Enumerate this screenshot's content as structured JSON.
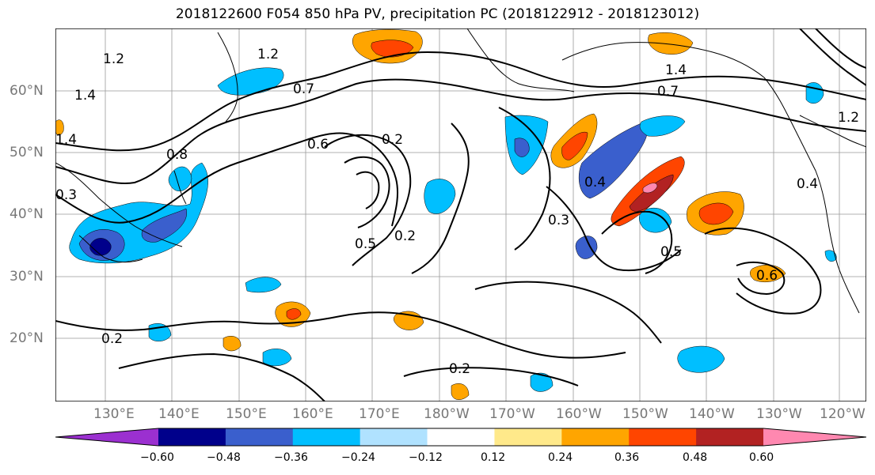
{
  "title": "2018122600 F054 850 hPa PV, precipitation PC (2018122912 - 2018123012)",
  "lat_labels": [
    "60°N",
    "50°N",
    "40°N",
    "30°N",
    "20°N"
  ],
  "lon_labels": [
    "130°E",
    "140°E",
    "150°E",
    "160°E",
    "170°E",
    "180°W",
    "170°W",
    "160°W",
    "150°W",
    "140°W",
    "130°W",
    "120°W"
  ],
  "contour_labels": [
    "1.2",
    "1.2",
    "1.4",
    "1.4",
    "1.4",
    "0.7",
    "0.8",
    "0.2",
    "0.2",
    "0.2",
    "0.4",
    "0.3",
    "0.5",
    "0.6",
    "0.3",
    "0.2",
    "0.4",
    "0.5",
    "0.6",
    "0.7",
    "1.2"
  ],
  "colorbar": {
    "ticks": [
      "−0.60",
      "−0.48",
      "−0.36",
      "−0.24",
      "−0.12",
      "0.12",
      "0.24",
      "0.36",
      "0.48",
      "0.60"
    ],
    "colors": [
      "#9b30d0",
      "#00008b",
      "#3a5fcd",
      "#00bfff",
      "#b0e2ff",
      "#ffffff",
      "#ffe98a",
      "#ffa500",
      "#ff4500",
      "#b22222",
      "#ff88b0"
    ]
  },
  "colors": {
    "neg_light": "#b0e2ff",
    "neg_mid": "#00bfff",
    "neg_strong": "#3a5fcd",
    "neg_max": "#00008b",
    "pos_light": "#ffe98a",
    "pos_mid": "#ffa500",
    "pos_strong": "#ff4500",
    "pos_max": "#b22222",
    "pos_extreme": "#ff88b0"
  }
}
